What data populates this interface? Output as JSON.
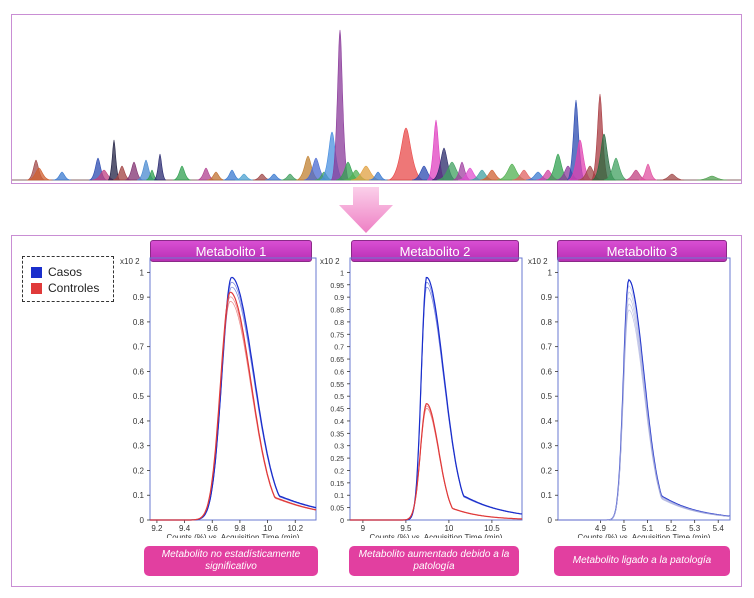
{
  "legend": {
    "casos": "Casos",
    "controles": "Controles"
  },
  "colors": {
    "casos": "#1a2ecc",
    "controles": "#e03a3a",
    "frame": "#c98ed4",
    "arrow": "#f090c8"
  },
  "chart_data": [
    {
      "type": "line",
      "title": "Metabolito 1",
      "multiplier_label": "x10 2",
      "xlabel": "Counts (%) vs. Acquisition Time (min)",
      "xlim": [
        9.15,
        10.35
      ],
      "ylim": [
        0,
        1.05
      ],
      "xticks": [
        "9.2",
        "9.4",
        "9.6",
        "9.8",
        "10",
        "10.2"
      ],
      "xtick_values": [
        9.2,
        9.4,
        9.6,
        9.8,
        10,
        10.2
      ],
      "yticks": [
        "0",
        "0.1",
        "0.2",
        "0.3",
        "0.4",
        "0.5",
        "0.6",
        "0.7",
        "0.8",
        "0.9",
        "1"
      ],
      "ytick_values": [
        0,
        0.1,
        0.2,
        0.3,
        0.4,
        0.5,
        0.6,
        0.7,
        0.8,
        0.9,
        1
      ],
      "series": [
        {
          "name": "Casos",
          "peak": 9.74,
          "height": 0.98,
          "rise": 0.07,
          "fall": 0.16
        },
        {
          "name": "Controles",
          "peak": 9.73,
          "height": 0.92,
          "rise": 0.07,
          "fall": 0.15
        }
      ],
      "caption": "Metabolito no estadísticamente significativo"
    },
    {
      "type": "line",
      "title": "Metabolito 2",
      "multiplier_label": "x10 2",
      "xlabel": "Counts (%) vs. Acquisition Time (min)",
      "xlim": [
        8.85,
        10.85
      ],
      "ylim": [
        0,
        1.05
      ],
      "xticks": [
        "9",
        "9.5",
        "10",
        "10.5"
      ],
      "xtick_values": [
        9,
        9.5,
        10,
        10.5
      ],
      "yticks": [
        "0",
        "0.05",
        "0.1",
        "0.15",
        "0.2",
        "0.25",
        "0.3",
        "0.35",
        "0.4",
        "0.45",
        "0.5",
        "0.55",
        "0.6",
        "0.65",
        "0.7",
        "0.75",
        "0.8",
        "0.85",
        "0.9",
        "0.95",
        "1"
      ],
      "ytick_values": [
        0,
        0.05,
        0.1,
        0.15,
        0.2,
        0.25,
        0.3,
        0.35,
        0.4,
        0.45,
        0.5,
        0.55,
        0.6,
        0.65,
        0.7,
        0.75,
        0.8,
        0.85,
        0.9,
        0.95,
        1
      ],
      "series": [
        {
          "name": "Casos",
          "peak": 9.74,
          "height": 0.98,
          "rise": 0.06,
          "fall": 0.2
        },
        {
          "name": "Controles",
          "peak": 9.74,
          "height": 0.47,
          "rise": 0.07,
          "fall": 0.14
        }
      ],
      "caption": "Metabolito aumentado debido a la patología"
    },
    {
      "type": "line",
      "title": "Metabolito 3",
      "multiplier_label": "x10 2",
      "xlabel": "Counts (%) vs. Acquisition Time (min)",
      "xlim": [
        4.72,
        5.45
      ],
      "ylim": [
        0,
        1.05
      ],
      "xticks": [
        "4.9",
        "5",
        "5.1",
        "5.2",
        "5.3",
        "5.4"
      ],
      "xtick_values": [
        4.9,
        5,
        5.1,
        5.2,
        5.3,
        5.4
      ],
      "yticks": [
        "0",
        "0.1",
        "0.2",
        "0.3",
        "0.4",
        "0.5",
        "0.6",
        "0.7",
        "0.8",
        "0.9",
        "1"
      ],
      "ytick_values": [
        0,
        0.1,
        0.2,
        0.3,
        0.4,
        0.5,
        0.6,
        0.7,
        0.8,
        0.9,
        1
      ],
      "series": [
        {
          "name": "Casos",
          "peak": 5.02,
          "height": 0.97,
          "rise": 0.022,
          "fall": 0.065
        }
      ],
      "caption": "Metabolito ligado a la patología"
    }
  ]
}
